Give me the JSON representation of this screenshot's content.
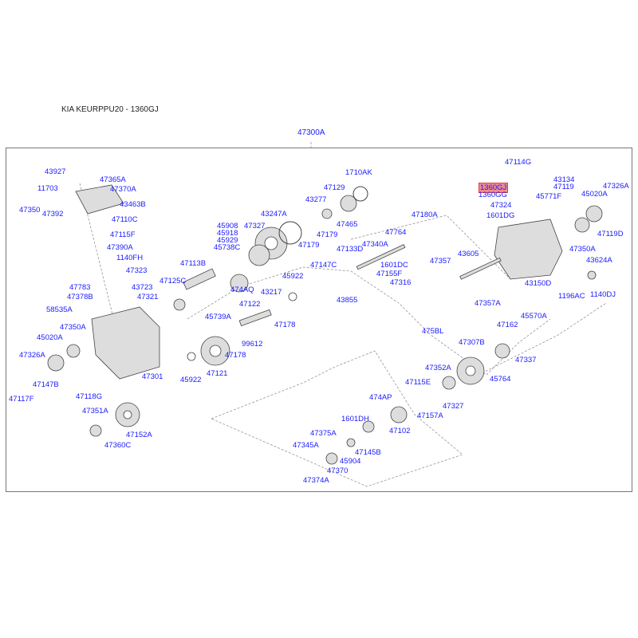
{
  "header": {
    "title": "KIA KEURPPU20 - 1360GJ",
    "group_code": "47300A"
  },
  "highlighted_part": "1360GJ",
  "colors": {
    "label": "#1a1aff",
    "highlight": "#f28a8a",
    "frame": "#777777"
  },
  "labels": [
    "43927",
    "47365A",
    "11703",
    "47370A",
    "47350",
    "47392",
    "43463B",
    "47110C",
    "47115F",
    "47390A",
    "1140FH",
    "47323",
    "47783",
    "43723",
    "47378B",
    "47321",
    "58535A",
    "47350A",
    "45020A",
    "47326A",
    "47147B",
    "47117F",
    "47118G",
    "47301",
    "45922",
    "47351A",
    "47152A",
    "47360C",
    "47113B",
    "47125C",
    "45739A",
    "45908",
    "45918",
    "45929",
    "45738C",
    "47327",
    "43247A",
    "47129",
    "43277",
    "1710AK",
    "47465",
    "47179",
    "47179",
    "474AQ",
    "47122",
    "43217",
    "45922",
    "47178",
    "47178",
    "99612",
    "47121",
    "47133D",
    "47340A",
    "47147C",
    "1601DC",
    "47155F",
    "47316",
    "47764",
    "47357",
    "47180A",
    "43855",
    "43605",
    "475BL",
    "47357A",
    "47114G",
    "1360GJ",
    "1360GG",
    "47324",
    "1601DG",
    "43134",
    "47119",
    "45771F",
    "45020A",
    "47326A",
    "47350A",
    "47119D",
    "43624A",
    "43150D",
    "1196AC",
    "1140DJ",
    "47162",
    "45570A",
    "47337",
    "45764",
    "47307B",
    "47352A",
    "47327",
    "47115E",
    "47157A",
    "474AP",
    "47102",
    "1601DH",
    "47375A",
    "47345A",
    "45904",
    "47145B",
    "47370",
    "47374A"
  ]
}
